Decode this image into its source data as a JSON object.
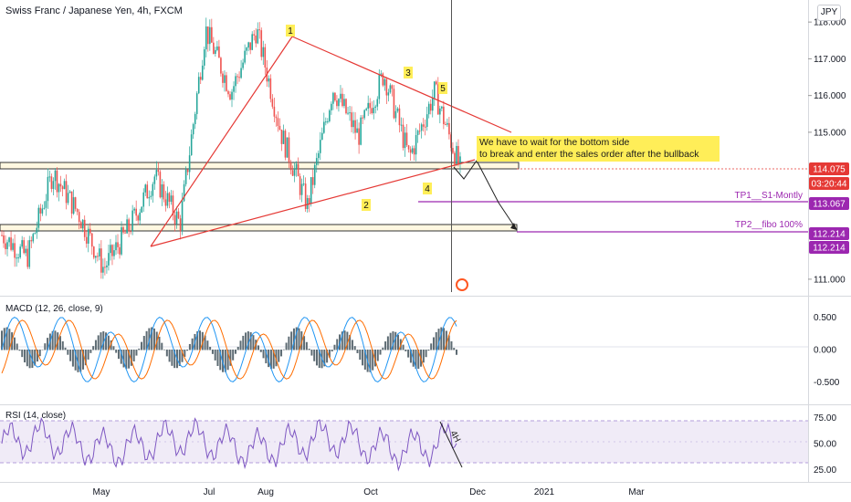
{
  "symbol_title": "Swiss Franc / Japanese Yen, 4h, FXCM",
  "currency_badge": "JPY",
  "panes": {
    "macd_title": "MACD (12, 26, close, 9)",
    "rsi_title": "RSI (14, close)"
  },
  "note_text": "We have to wait for the bottom side\n to break and enter the sales order after the bullback",
  "chart_data": [
    {
      "type": "candlestick",
      "title": "Swiss Franc / Japanese Yen, 4h, FXCM",
      "y_ticks": [
        "118.000",
        "117.000",
        "116.000",
        "115.000",
        "111.000"
      ],
      "y_range": [
        110.6,
        118.6
      ],
      "x_ticks": [
        "May",
        "Jul",
        "Aug",
        "Oct",
        "Dec",
        "2021",
        "Mar"
      ],
      "price_path_approx": [
        112.2,
        111.6,
        113.9,
        112.8,
        111.3,
        112.4,
        113.8,
        112.5,
        117.8,
        116.1,
        117.8,
        114.9,
        113.0,
        116.2,
        114.9,
        116.6,
        114.3,
        116.1,
        114.0
      ],
      "price_labels": [
        {
          "label": "114.075",
          "value": 114.075,
          "color": "#e53935"
        },
        {
          "label": "03:20:44",
          "color": "#e53935"
        },
        {
          "label": "113.067",
          "value": 113.067,
          "color": "#9c27b0"
        },
        {
          "label": "112.214",
          "value": 112.214,
          "color": "#9c27b0"
        },
        {
          "label": "112.214",
          "value": 112.214,
          "color": "#9c27b0"
        }
      ],
      "wave_labels": [
        "1",
        "2",
        "3",
        "4",
        "5"
      ],
      "zones": [
        {
          "name": "upper-zone",
          "from": 114.0,
          "to": 114.18
        },
        {
          "name": "lower-zone",
          "from": 112.1,
          "to": 112.3
        }
      ],
      "targets": [
        {
          "label": "TP1__S1-Montly",
          "value": 113.067
        },
        {
          "label": "TP2__fibo 100%",
          "value": 112.214
        }
      ],
      "annotation": "We have to wait for the bottom side\n to break and enter the sales order after the bullback",
      "colors": {
        "up": "#26a69a",
        "down": "#ef5350",
        "trend": "#e53935",
        "target": "#9c27b0",
        "note_bg": "#ffee58"
      }
    },
    {
      "type": "line",
      "title": "MACD (12, 26, close, 9)",
      "y_ticks": [
        "0.500",
        "0.000",
        "-0.500"
      ],
      "y_range": [
        -0.8,
        0.8
      ],
      "series": [
        {
          "name": "MACD",
          "color": "#2196f3"
        },
        {
          "name": "Signal",
          "color": "#ff6d00"
        }
      ]
    },
    {
      "type": "line",
      "title": "RSI (14, close)",
      "y_ticks": [
        "75.00",
        "50.00",
        "25.00"
      ],
      "y_range": [
        15,
        85
      ],
      "band": [
        30,
        70
      ],
      "annotation": "4H",
      "series": [
        {
          "name": "RSI",
          "color": "#7e57c2"
        }
      ]
    }
  ]
}
